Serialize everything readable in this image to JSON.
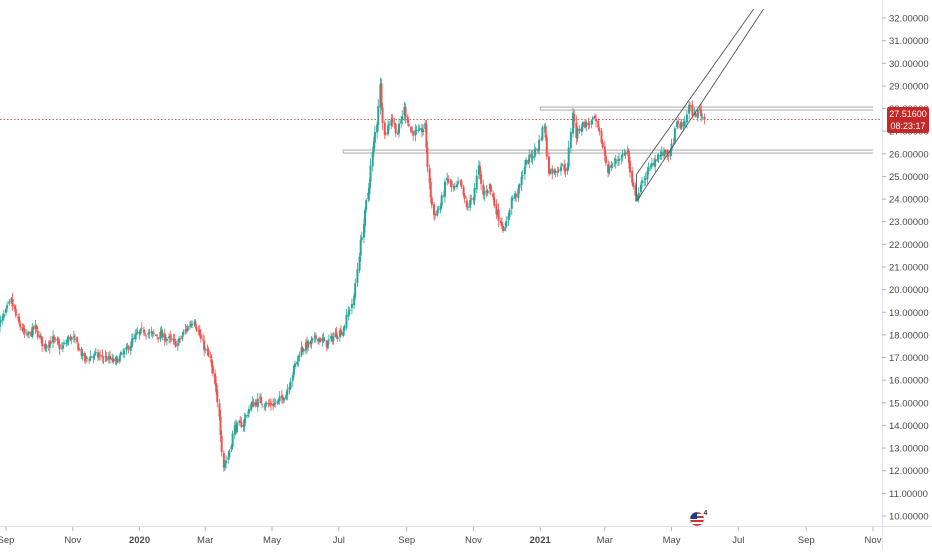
{
  "chart_data": {
    "type": "candlestick",
    "title": "",
    "y_axis": {
      "ticks": [
        "32.00000",
        "31.00000",
        "30.00000",
        "29.00000",
        "28.00000",
        "27.00000",
        "26.00000",
        "25.00000",
        "24.00000",
        "23.00000",
        "22.00000",
        "21.00000",
        "20.00000",
        "19.00000",
        "18.00000",
        "17.00000",
        "16.00000",
        "15.00000",
        "14.00000",
        "13.00000",
        "12.00000",
        "11.00000",
        "10.00000"
      ],
      "range": [
        9.6,
        32.4
      ],
      "position": "right"
    },
    "x_axis": {
      "labels": [
        {
          "text": "Sep",
          "date": "2019-09-01",
          "bold": false
        },
        {
          "text": "Nov",
          "date": "2019-11-01",
          "bold": false
        },
        {
          "text": "2020",
          "date": "2020-01-01",
          "bold": true
        },
        {
          "text": "Mar",
          "date": "2020-03-01",
          "bold": false
        },
        {
          "text": "May",
          "date": "2020-05-01",
          "bold": false
        },
        {
          "text": "Jul",
          "date": "2020-07-01",
          "bold": false
        },
        {
          "text": "Sep",
          "date": "2020-09-01",
          "bold": false
        },
        {
          "text": "Nov",
          "date": "2020-11-01",
          "bold": false
        },
        {
          "text": "2021",
          "date": "2021-01-01",
          "bold": true
        },
        {
          "text": "Mar",
          "date": "2021-03-01",
          "bold": false
        },
        {
          "text": "May",
          "date": "2021-05-01",
          "bold": false
        },
        {
          "text": "Jul",
          "date": "2021-07-01",
          "bold": false
        },
        {
          "text": "Sep",
          "date": "2021-09-01",
          "bold": false
        },
        {
          "text": "Nov",
          "date": "2021-11-01",
          "bold": false
        }
      ],
      "range": [
        "2019-09-01",
        "2021-11-01"
      ]
    },
    "current_price": {
      "value": "27.51600",
      "countdown": "08:23:17",
      "price": 27.516
    },
    "price_path": [
      {
        "date": "2019-08-25",
        "close": 18.3
      },
      {
        "date": "2019-09-01",
        "close": 19.0
      },
      {
        "date": "2019-09-06",
        "close": 19.5
      },
      {
        "date": "2019-09-12",
        "close": 18.6
      },
      {
        "date": "2019-09-20",
        "close": 17.9
      },
      {
        "date": "2019-09-28",
        "close": 18.3
      },
      {
        "date": "2019-10-06",
        "close": 17.5
      },
      {
        "date": "2019-10-14",
        "close": 17.8
      },
      {
        "date": "2019-10-22",
        "close": 17.4
      },
      {
        "date": "2019-10-30",
        "close": 17.9
      },
      {
        "date": "2019-11-05",
        "close": 17.6
      },
      {
        "date": "2019-11-12",
        "close": 16.9
      },
      {
        "date": "2019-11-20",
        "close": 17.1
      },
      {
        "date": "2019-12-01",
        "close": 17.0
      },
      {
        "date": "2019-12-10",
        "close": 16.8
      },
      {
        "date": "2019-12-20",
        "close": 17.3
      },
      {
        "date": "2019-12-28",
        "close": 17.9
      },
      {
        "date": "2020-01-05",
        "close": 18.2
      },
      {
        "date": "2020-01-12",
        "close": 18.0
      },
      {
        "date": "2020-01-20",
        "close": 18.0
      },
      {
        "date": "2020-01-28",
        "close": 17.8
      },
      {
        "date": "2020-02-05",
        "close": 17.6
      },
      {
        "date": "2020-02-12",
        "close": 18.2
      },
      {
        "date": "2020-02-20",
        "close": 18.7
      },
      {
        "date": "2020-02-28",
        "close": 17.6
      },
      {
        "date": "2020-03-06",
        "close": 16.9
      },
      {
        "date": "2020-03-10",
        "close": 15.8
      },
      {
        "date": "2020-03-14",
        "close": 14.5
      },
      {
        "date": "2020-03-18",
        "close": 12.2
      },
      {
        "date": "2020-03-22",
        "close": 12.6
      },
      {
        "date": "2020-03-28",
        "close": 13.9
      },
      {
        "date": "2020-04-05",
        "close": 14.1
      },
      {
        "date": "2020-04-12",
        "close": 14.9
      },
      {
        "date": "2020-04-20",
        "close": 15.1
      },
      {
        "date": "2020-04-28",
        "close": 14.9
      },
      {
        "date": "2020-05-06",
        "close": 15.0
      },
      {
        "date": "2020-05-14",
        "close": 15.4
      },
      {
        "date": "2020-05-20",
        "close": 16.3
      },
      {
        "date": "2020-05-28",
        "close": 17.4
      },
      {
        "date": "2020-06-05",
        "close": 17.6
      },
      {
        "date": "2020-06-12",
        "close": 17.9
      },
      {
        "date": "2020-06-20",
        "close": 17.6
      },
      {
        "date": "2020-06-28",
        "close": 18.0
      },
      {
        "date": "2020-07-05",
        "close": 18.2
      },
      {
        "date": "2020-07-10",
        "close": 19.0
      },
      {
        "date": "2020-07-15",
        "close": 19.6
      },
      {
        "date": "2020-07-20",
        "close": 21.6
      },
      {
        "date": "2020-07-24",
        "close": 22.9
      },
      {
        "date": "2020-07-28",
        "close": 24.3
      },
      {
        "date": "2020-08-01",
        "close": 26.0
      },
      {
        "date": "2020-08-05",
        "close": 27.4
      },
      {
        "date": "2020-08-08",
        "close": 29.0
      },
      {
        "date": "2020-08-12",
        "close": 26.8
      },
      {
        "date": "2020-08-18",
        "close": 27.6
      },
      {
        "date": "2020-08-24",
        "close": 26.9
      },
      {
        "date": "2020-08-30",
        "close": 28.0
      },
      {
        "date": "2020-09-05",
        "close": 27.0
      },
      {
        "date": "2020-09-12",
        "close": 26.9
      },
      {
        "date": "2020-09-18",
        "close": 27.2
      },
      {
        "date": "2020-09-22",
        "close": 24.6
      },
      {
        "date": "2020-09-26",
        "close": 23.3
      },
      {
        "date": "2020-10-02",
        "close": 23.7
      },
      {
        "date": "2020-10-08",
        "close": 24.9
      },
      {
        "date": "2020-10-14",
        "close": 24.4
      },
      {
        "date": "2020-10-20",
        "close": 24.7
      },
      {
        "date": "2020-10-26",
        "close": 23.6
      },
      {
        "date": "2020-11-01",
        "close": 24.1
      },
      {
        "date": "2020-11-06",
        "close": 25.4
      },
      {
        "date": "2020-11-10",
        "close": 24.2
      },
      {
        "date": "2020-11-16",
        "close": 24.6
      },
      {
        "date": "2020-11-22",
        "close": 23.5
      },
      {
        "date": "2020-11-30",
        "close": 22.6
      },
      {
        "date": "2020-12-06",
        "close": 24.0
      },
      {
        "date": "2020-12-12",
        "close": 24.3
      },
      {
        "date": "2020-12-18",
        "close": 25.5
      },
      {
        "date": "2020-12-24",
        "close": 25.9
      },
      {
        "date": "2020-12-30",
        "close": 26.3
      },
      {
        "date": "2021-01-05",
        "close": 27.3
      },
      {
        "date": "2021-01-09",
        "close": 25.3
      },
      {
        "date": "2021-01-14",
        "close": 25.2
      },
      {
        "date": "2021-01-20",
        "close": 25.5
      },
      {
        "date": "2021-01-26",
        "close": 25.3
      },
      {
        "date": "2021-01-31",
        "close": 27.9
      },
      {
        "date": "2021-02-03",
        "close": 26.8
      },
      {
        "date": "2021-02-08",
        "close": 27.3
      },
      {
        "date": "2021-02-14",
        "close": 27.3
      },
      {
        "date": "2021-02-20",
        "close": 27.5
      },
      {
        "date": "2021-02-26",
        "close": 26.6
      },
      {
        "date": "2021-03-04",
        "close": 25.3
      },
      {
        "date": "2021-03-10",
        "close": 25.6
      },
      {
        "date": "2021-03-16",
        "close": 25.9
      },
      {
        "date": "2021-03-22",
        "close": 26.1
      },
      {
        "date": "2021-03-26",
        "close": 24.6
      },
      {
        "date": "2021-03-31",
        "close": 24.1
      },
      {
        "date": "2021-04-06",
        "close": 24.9
      },
      {
        "date": "2021-04-12",
        "close": 25.4
      },
      {
        "date": "2021-04-18",
        "close": 25.9
      },
      {
        "date": "2021-04-24",
        "close": 26.0
      },
      {
        "date": "2021-04-30",
        "close": 26.0
      },
      {
        "date": "2021-05-06",
        "close": 27.3
      },
      {
        "date": "2021-05-12",
        "close": 27.2
      },
      {
        "date": "2021-05-17",
        "close": 28.1
      },
      {
        "date": "2021-05-22",
        "close": 27.7
      },
      {
        "date": "2021-05-27",
        "close": 27.9
      },
      {
        "date": "2021-05-31",
        "close": 27.516
      }
    ],
    "horizontal_levels": [
      {
        "price": 28.0,
        "start": "2021-01-01",
        "end": "2021-11-01"
      },
      {
        "price": 26.1,
        "start": "2020-07-05",
        "end": "2021-11-01"
      }
    ],
    "channel": {
      "lower_start": {
        "date": "2021-03-30",
        "price": 23.9
      },
      "lower_end": {
        "date": "2021-07-24",
        "price": 32.4
      },
      "upper_start": {
        "date": "2021-03-30",
        "price": 25.1
      },
      "upper_end": {
        "date": "2021-07-15",
        "price": 32.4
      }
    },
    "colors": {
      "up": "#26a69a",
      "down": "#ef5350",
      "price_line": "#c62828",
      "level_line": "#9e9e9e",
      "axis_text": "#4a4a4a",
      "axis_line": "#e0e3eb"
    },
    "grid": false,
    "legend": "none"
  },
  "badge": {
    "icon": "us-flag-icon",
    "label": "4"
  }
}
